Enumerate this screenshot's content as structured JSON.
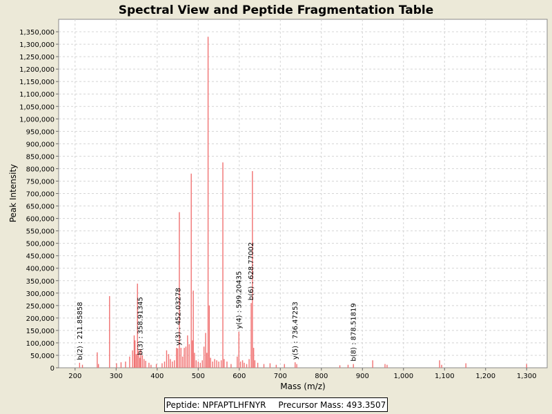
{
  "chart_data": {
    "type": "bar",
    "title": "Spectral View and Peptide Fragmentation Table",
    "xlabel": "Mass (m/z)",
    "ylabel": "Peak Intensity",
    "xlim": [
      160,
      1350
    ],
    "ylim": [
      0,
      1400000
    ],
    "x_ticks": [
      200,
      300,
      400,
      500,
      600,
      700,
      800,
      900,
      1000,
      1100,
      1200,
      1300
    ],
    "x_tick_labels": [
      "200",
      "300",
      "400",
      "500",
      "600",
      "700",
      "800",
      "900",
      "1,000",
      "1,100",
      "1,200",
      "1,300"
    ],
    "y_ticks": [
      0,
      50000,
      100000,
      150000,
      200000,
      250000,
      300000,
      350000,
      400000,
      450000,
      500000,
      550000,
      600000,
      650000,
      700000,
      750000,
      800000,
      850000,
      900000,
      950000,
      1000000,
      1050000,
      1100000,
      1150000,
      1200000,
      1250000,
      1300000,
      1350000
    ],
    "y_tick_labels": [
      "0",
      "50,000",
      "100,000",
      "150,000",
      "200,000",
      "250,000",
      "300,000",
      "350,000",
      "400,000",
      "450,000",
      "500,000",
      "550,000",
      "600,000",
      "650,000",
      "700,000",
      "750,000",
      "800,000",
      "850,000",
      "900,000",
      "950,000",
      "1,000,000",
      "1,050,000",
      "1,100,000",
      "1,150,000",
      "1,200,000",
      "1,250,000",
      "1,300,000",
      "1,350,000"
    ],
    "grid": true,
    "peak_color": "#F07070",
    "peaks": [
      {
        "mz": 211,
        "intensity": 20000
      },
      {
        "mz": 218,
        "intensity": 12000
      },
      {
        "mz": 254,
        "intensity": 62000
      },
      {
        "mz": 257,
        "intensity": 15000
      },
      {
        "mz": 284,
        "intensity": 288000
      },
      {
        "mz": 301,
        "intensity": 18000
      },
      {
        "mz": 312,
        "intensity": 22000
      },
      {
        "mz": 323,
        "intensity": 25000
      },
      {
        "mz": 333,
        "intensity": 45000
      },
      {
        "mz": 340,
        "intensity": 70000
      },
      {
        "mz": 344,
        "intensity": 130000
      },
      {
        "mz": 346,
        "intensity": 110000
      },
      {
        "mz": 349,
        "intensity": 55000
      },
      {
        "mz": 352,
        "intensity": 338000
      },
      {
        "mz": 355,
        "intensity": 70000
      },
      {
        "mz": 358,
        "intensity": 40000
      },
      {
        "mz": 360,
        "intensity": 75000
      },
      {
        "mz": 364,
        "intensity": 50000
      },
      {
        "mz": 368,
        "intensity": 35000
      },
      {
        "mz": 372,
        "intensity": 28000
      },
      {
        "mz": 380,
        "intensity": 20000
      },
      {
        "mz": 385,
        "intensity": 12000
      },
      {
        "mz": 398,
        "intensity": 15000
      },
      {
        "mz": 412,
        "intensity": 18000
      },
      {
        "mz": 418,
        "intensity": 25000
      },
      {
        "mz": 423,
        "intensity": 70000
      },
      {
        "mz": 428,
        "intensity": 55000
      },
      {
        "mz": 432,
        "intensity": 35000
      },
      {
        "mz": 437,
        "intensity": 25000
      },
      {
        "mz": 442,
        "intensity": 30000
      },
      {
        "mz": 447,
        "intensity": 80000
      },
      {
        "mz": 450,
        "intensity": 78000
      },
      {
        "mz": 454,
        "intensity": 625000
      },
      {
        "mz": 458,
        "intensity": 80000
      },
      {
        "mz": 462,
        "intensity": 45000
      },
      {
        "mz": 466,
        "intensity": 80000
      },
      {
        "mz": 470,
        "intensity": 85000
      },
      {
        "mz": 474,
        "intensity": 130000
      },
      {
        "mz": 478,
        "intensity": 95000
      },
      {
        "mz": 483,
        "intensity": 780000
      },
      {
        "mz": 486,
        "intensity": 110000
      },
      {
        "mz": 488,
        "intensity": 310000
      },
      {
        "mz": 491,
        "intensity": 60000
      },
      {
        "mz": 495,
        "intensity": 30000
      },
      {
        "mz": 500,
        "intensity": 25000
      },
      {
        "mz": 505,
        "intensity": 20000
      },
      {
        "mz": 510,
        "intensity": 30000
      },
      {
        "mz": 514,
        "intensity": 85000
      },
      {
        "mz": 518,
        "intensity": 140000
      },
      {
        "mz": 521,
        "intensity": 60000
      },
      {
        "mz": 524,
        "intensity": 1330000
      },
      {
        "mz": 527,
        "intensity": 250000
      },
      {
        "mz": 530,
        "intensity": 40000
      },
      {
        "mz": 535,
        "intensity": 25000
      },
      {
        "mz": 540,
        "intensity": 35000
      },
      {
        "mz": 545,
        "intensity": 30000
      },
      {
        "mz": 550,
        "intensity": 25000
      },
      {
        "mz": 556,
        "intensity": 30000
      },
      {
        "mz": 560,
        "intensity": 825000
      },
      {
        "mz": 563,
        "intensity": 35000
      },
      {
        "mz": 570,
        "intensity": 25000
      },
      {
        "mz": 580,
        "intensity": 15000
      },
      {
        "mz": 595,
        "intensity": 45000
      },
      {
        "mz": 599,
        "intensity": 145000
      },
      {
        "mz": 603,
        "intensity": 25000
      },
      {
        "mz": 608,
        "intensity": 30000
      },
      {
        "mz": 612,
        "intensity": 20000
      },
      {
        "mz": 618,
        "intensity": 15000
      },
      {
        "mz": 624,
        "intensity": 35000
      },
      {
        "mz": 629,
        "intensity": 260000
      },
      {
        "mz": 632,
        "intensity": 790000
      },
      {
        "mz": 635,
        "intensity": 80000
      },
      {
        "mz": 638,
        "intensity": 30000
      },
      {
        "mz": 645,
        "intensity": 20000
      },
      {
        "mz": 660,
        "intensity": 15000
      },
      {
        "mz": 675,
        "intensity": 18000
      },
      {
        "mz": 690,
        "intensity": 12000
      },
      {
        "mz": 710,
        "intensity": 15000
      },
      {
        "mz": 736,
        "intensity": 22000
      },
      {
        "mz": 740,
        "intensity": 15000
      },
      {
        "mz": 845,
        "intensity": 10000
      },
      {
        "mz": 865,
        "intensity": 12000
      },
      {
        "mz": 878,
        "intensity": 15000
      },
      {
        "mz": 925,
        "intensity": 30000
      },
      {
        "mz": 955,
        "intensity": 15000
      },
      {
        "mz": 960,
        "intensity": 12000
      },
      {
        "mz": 1088,
        "intensity": 30000
      },
      {
        "mz": 1093,
        "intensity": 12000
      },
      {
        "mz": 1152,
        "intensity": 18000
      },
      {
        "mz": 1300,
        "intensity": 15000
      }
    ],
    "annotations": [
      {
        "label": "b(2) : 211.85858",
        "mz": 211.85858,
        "intensity": 20000
      },
      {
        "label": "b(3) : 358.91345",
        "mz": 358.91345,
        "intensity": 40000
      },
      {
        "label": "y(3) : 452.03278",
        "mz": 452.03278,
        "intensity": 78000
      },
      {
        "label": "y(4) : 599.20435",
        "mz": 599.20435,
        "intensity": 145000
      },
      {
        "label": "b(6) : 628.77002",
        "mz": 628.77002,
        "intensity": 260000
      },
      {
        "label": "y(5) : 736.47253",
        "mz": 736.47253,
        "intensity": 22000
      },
      {
        "label": "b(8) : 878.51819",
        "mz": 878.51819,
        "intensity": 15000
      }
    ]
  },
  "legend": {
    "peptide": "Peptide: NPFAPTLHFNYR",
    "precursor": "Precursor Mass: 493.3507"
  }
}
